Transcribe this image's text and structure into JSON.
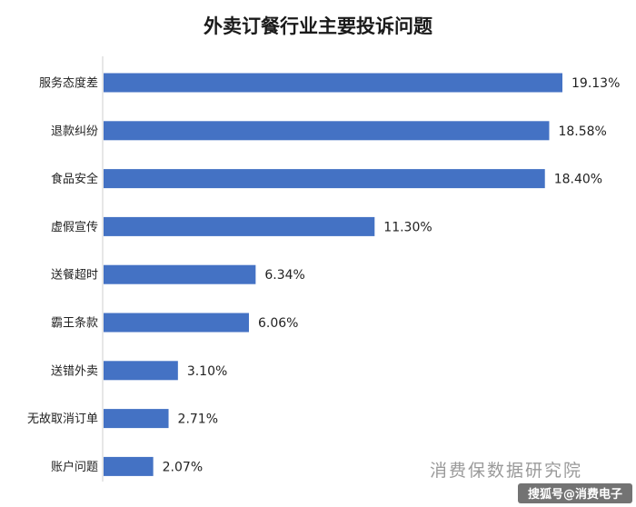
{
  "chart_data": {
    "type": "bar",
    "orientation": "horizontal",
    "title": "外卖订餐行业主要投诉问题",
    "categories": [
      "服务态度差",
      "退款纠纷",
      "食品安全",
      "虚假宣传",
      "送餐超时",
      "霸王条款",
      "送错外卖",
      "无故取消订单",
      "账户问题"
    ],
    "values": [
      19.13,
      18.58,
      18.4,
      11.3,
      6.34,
      6.06,
      3.1,
      2.71,
      2.07
    ],
    "value_labels": [
      "19.13%",
      "18.58%",
      "18.40%",
      "11.30%",
      "6.34%",
      "6.06%",
      "3.10%",
      "2.71%",
      "2.07%"
    ],
    "xlim": [
      0,
      19.13
    ],
    "bar_color": "#4472C4",
    "grid": false,
    "legend": "none"
  },
  "source": "消费保数据研究院",
  "watermark": "搜狐号@消费电子"
}
